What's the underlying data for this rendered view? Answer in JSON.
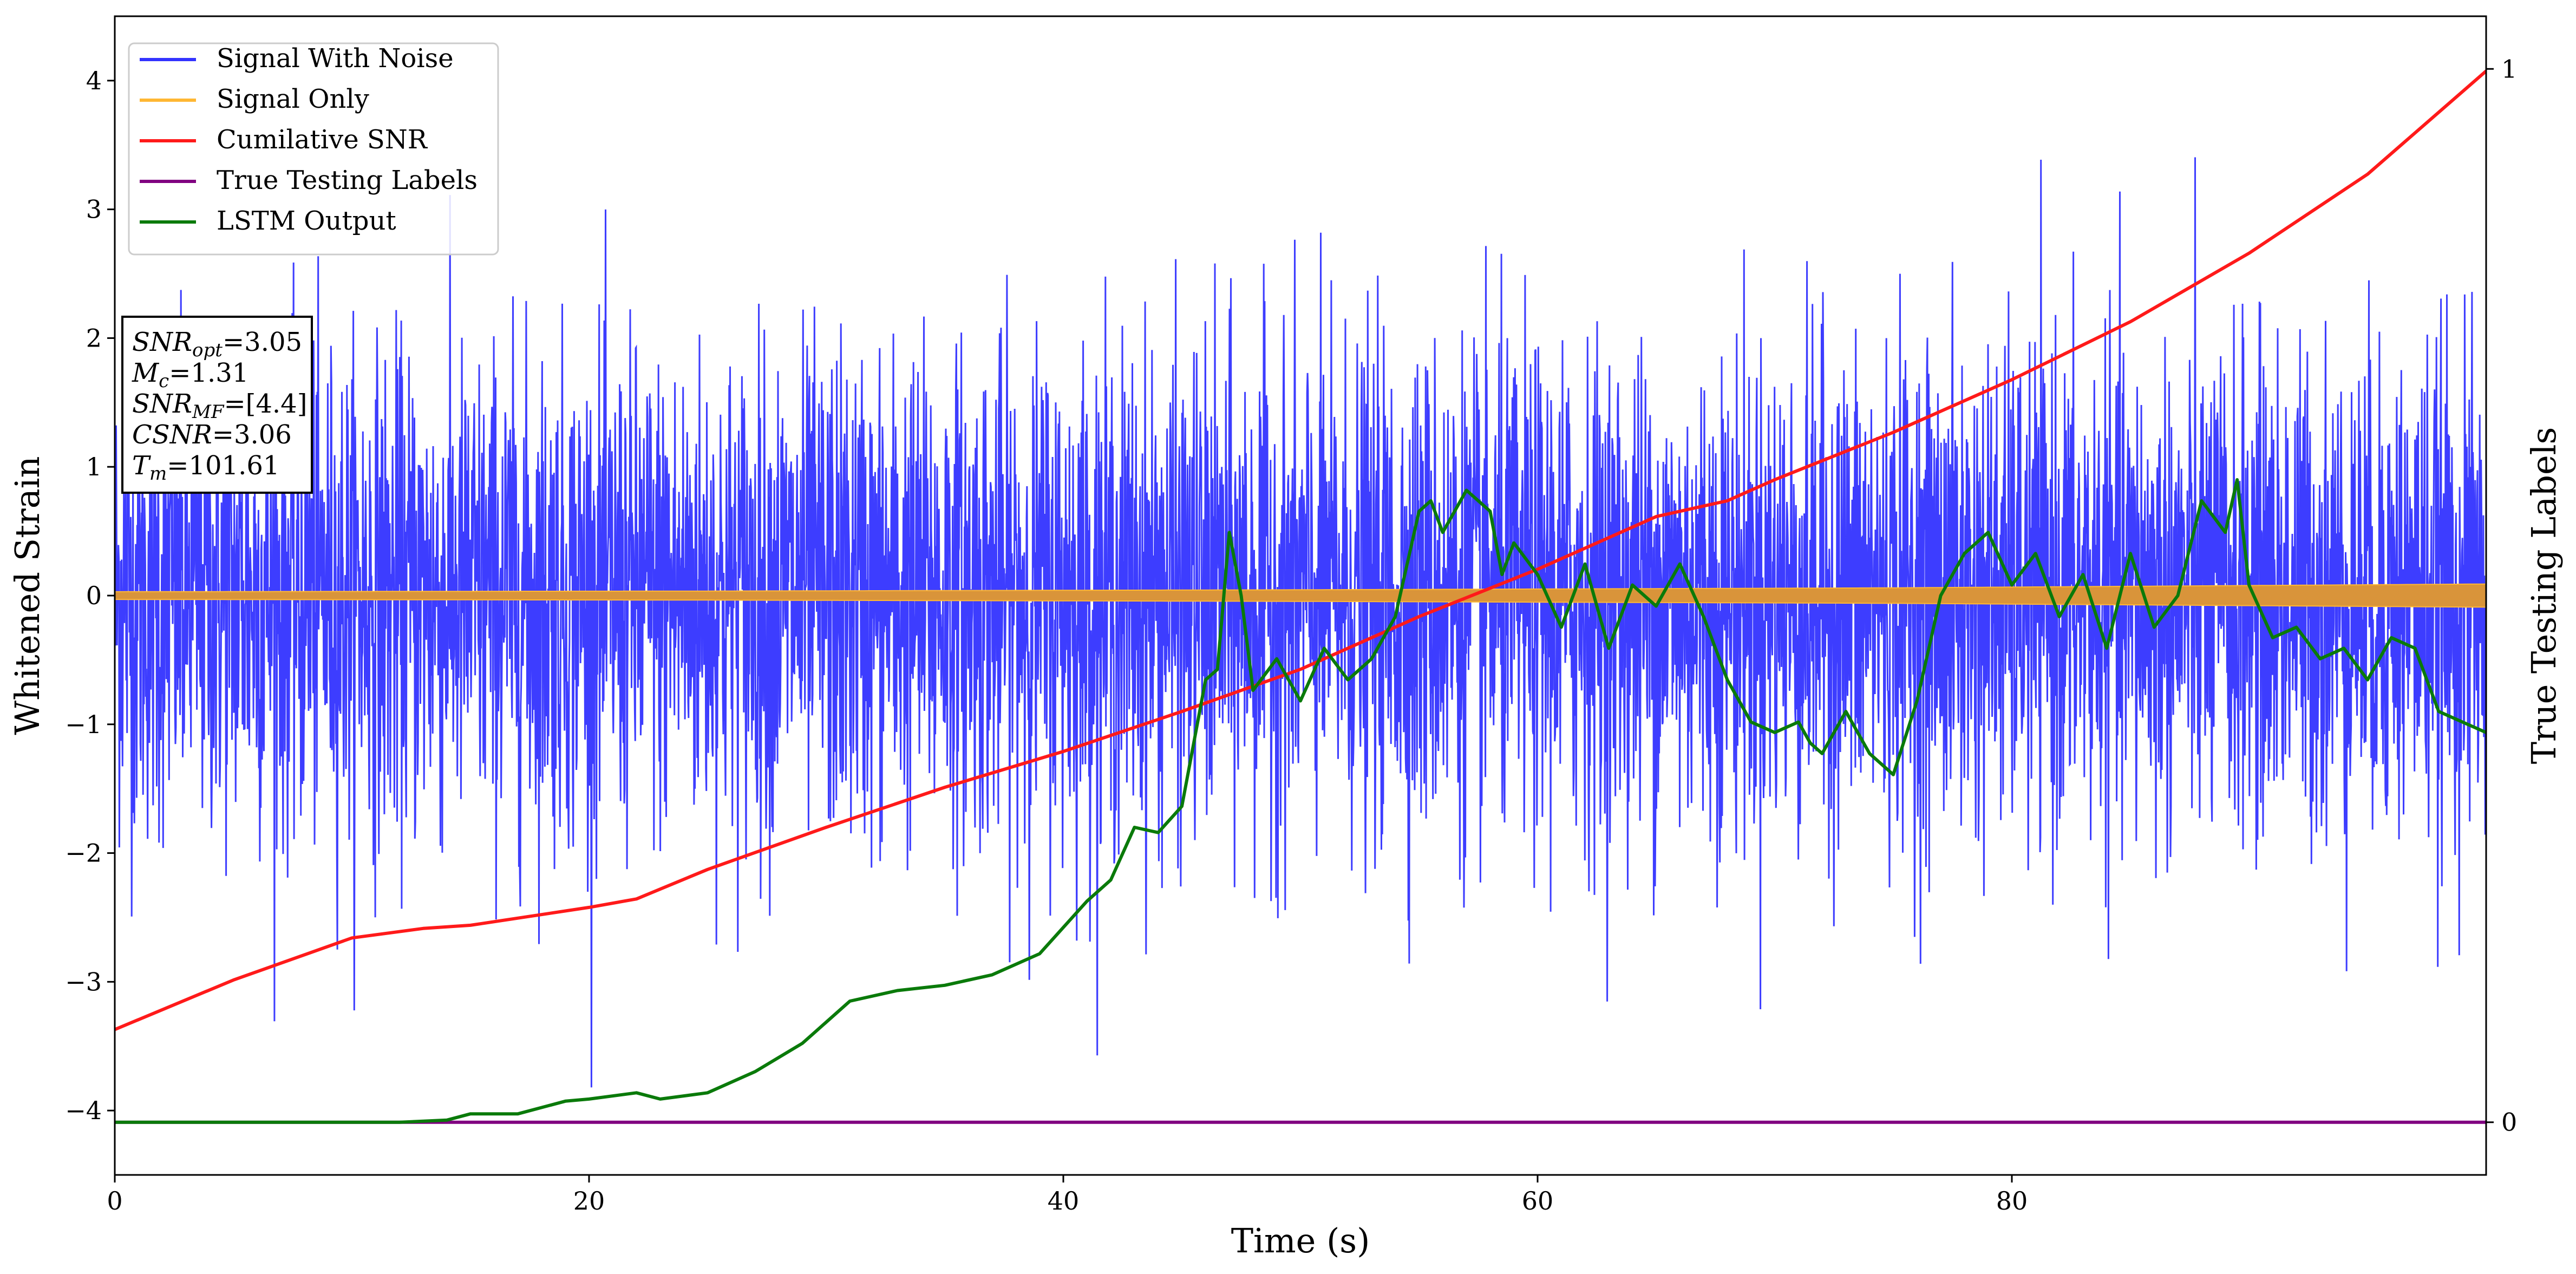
{
  "chart_data": {
    "type": "line",
    "xlabel": "Time (s)",
    "ylabel": "Whitened Strain",
    "y2label": "True Testing Labels",
    "xlim": [
      0,
      100
    ],
    "ylim": [
      -4.5,
      4.5
    ],
    "y2lim": [
      -0.05,
      1.05
    ],
    "xticks": [
      0,
      20,
      40,
      60,
      80
    ],
    "yticks": [
      -4,
      -3,
      -2,
      -1,
      0,
      1,
      2,
      3,
      4
    ],
    "y2ticks": [
      0,
      1
    ],
    "grid": false,
    "legend_position": "upper-left",
    "legend": [
      {
        "label": "Signal With Noise",
        "color": "#3333ff"
      },
      {
        "label": "Signal Only",
        "color": "#ffb733"
      },
      {
        "label": "Cumilative SNR",
        "color": "#ff1a1a"
      },
      {
        "label": "True Testing Labels",
        "color": "#800080"
      },
      {
        "label": "LSTM Output",
        "color": "#0a7a0a"
      }
    ],
    "annotation": [
      {
        "name": "SNR",
        "sub": "opt",
        "value": "=3.05"
      },
      {
        "name": "M",
        "sub": "c",
        "value": "=1.31"
      },
      {
        "name": "SNR",
        "sub": "MF",
        "value": "=[4.4]"
      },
      {
        "name": "CSNR",
        "sub": "",
        "value": "=3.06"
      },
      {
        "name": "T",
        "sub": "m",
        "value": "=101.61"
      }
    ],
    "series": [
      {
        "name": "Signal With Noise",
        "axis": "left",
        "color": "#3333ff",
        "kind": "noise",
        "std": 0.95,
        "range_min": -4.1,
        "range_max": 3.5
      },
      {
        "name": "Signal Only",
        "axis": "left",
        "color": "#ffb733",
        "kind": "band",
        "x": [
          0,
          25,
          50,
          75,
          100
        ],
        "amplitude": [
          0.03,
          0.035,
          0.045,
          0.06,
          0.09
        ]
      },
      {
        "name": "Cumilative SNR",
        "axis": "right",
        "color": "#ff1a1a",
        "x": [
          0,
          5,
          10,
          13,
          15,
          20,
          22,
          25,
          30,
          35,
          40,
          45,
          50,
          55,
          60,
          65,
          68,
          70,
          75,
          80,
          85,
          90,
          95,
          100
        ],
        "y": [
          0.088,
          0.135,
          0.175,
          0.184,
          0.187,
          0.204,
          0.212,
          0.24,
          0.28,
          0.318,
          0.352,
          0.39,
          0.43,
          0.48,
          0.525,
          0.575,
          0.59,
          0.61,
          0.655,
          0.705,
          0.76,
          0.825,
          0.9,
          0.998
        ]
      },
      {
        "name": "True Testing Labels",
        "axis": "right",
        "color": "#800080",
        "x": [
          0,
          100
        ],
        "y": [
          0,
          0
        ]
      },
      {
        "name": "LSTM Output",
        "axis": "right",
        "color": "#0a7a0a",
        "x": [
          0,
          12,
          14,
          15,
          17,
          19,
          20,
          22,
          23,
          25,
          27,
          29,
          31,
          33,
          35,
          37,
          39,
          41,
          42,
          43,
          44,
          45,
          46,
          46.5,
          47,
          47.5,
          48,
          49,
          50,
          51,
          52,
          53,
          54,
          55,
          55.5,
          56,
          57,
          58,
          58.5,
          59,
          60,
          61,
          62,
          63,
          64,
          65,
          66,
          67,
          68,
          69,
          70,
          71,
          71.5,
          72,
          73,
          74,
          75,
          76,
          77,
          78,
          79,
          80,
          81,
          82,
          83,
          84,
          85,
          86,
          87,
          88,
          89,
          89.5,
          90,
          91,
          92,
          93,
          94,
          95,
          96,
          97,
          98,
          99,
          100
        ],
        "y": [
          0,
          0,
          0.002,
          0.008,
          0.008,
          0.02,
          0.022,
          0.028,
          0.022,
          0.028,
          0.048,
          0.075,
          0.115,
          0.125,
          0.13,
          0.14,
          0.16,
          0.21,
          0.23,
          0.28,
          0.275,
          0.3,
          0.42,
          0.43,
          0.56,
          0.5,
          0.41,
          0.44,
          0.4,
          0.45,
          0.42,
          0.44,
          0.48,
          0.58,
          0.59,
          0.56,
          0.6,
          0.58,
          0.52,
          0.55,
          0.52,
          0.47,
          0.53,
          0.45,
          0.51,
          0.49,
          0.53,
          0.48,
          0.42,
          0.38,
          0.37,
          0.38,
          0.36,
          0.35,
          0.39,
          0.35,
          0.33,
          0.4,
          0.5,
          0.54,
          0.56,
          0.51,
          0.54,
          0.48,
          0.52,
          0.45,
          0.54,
          0.47,
          0.5,
          0.59,
          0.56,
          0.61,
          0.51,
          0.46,
          0.47,
          0.44,
          0.45,
          0.42,
          0.46,
          0.45,
          0.39,
          0.38,
          0.37
        ]
      }
    ]
  }
}
